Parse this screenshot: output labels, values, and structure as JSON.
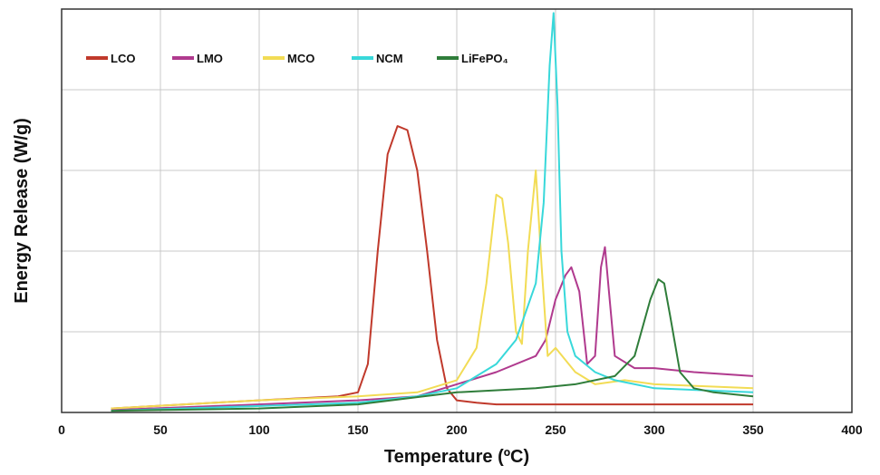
{
  "chart_data": {
    "type": "line",
    "title": "",
    "xlabel": "Temperature (ºC)",
    "ylabel": "Energy Release (W/g)",
    "xlim": [
      0,
      400
    ],
    "ylim": [
      0,
      5
    ],
    "xticks": [
      0,
      50,
      100,
      150,
      200,
      250,
      300,
      350,
      400
    ],
    "yticks": [
      0,
      1,
      2,
      3,
      4,
      5
    ],
    "grid": true,
    "legend_position": "top-left",
    "series": [
      {
        "name": "LCO",
        "color": "#c0392b",
        "x": [
          25,
          100,
          140,
          150,
          155,
          160,
          165,
          170,
          175,
          180,
          185,
          190,
          195,
          200,
          210,
          220,
          240,
          260,
          300,
          350
        ],
        "y": [
          0.05,
          0.15,
          0.2,
          0.25,
          0.6,
          2.0,
          3.2,
          3.55,
          3.5,
          3.0,
          2.0,
          0.9,
          0.3,
          0.15,
          0.12,
          0.1,
          0.1,
          0.1,
          0.1,
          0.1
        ]
      },
      {
        "name": "LMO",
        "color": "#b03a8e",
        "x": [
          25,
          100,
          150,
          180,
          200,
          220,
          240,
          245,
          250,
          255,
          258,
          262,
          266,
          270,
          273,
          275,
          277,
          280,
          290,
          300,
          320,
          350
        ],
        "y": [
          0.03,
          0.1,
          0.15,
          0.2,
          0.35,
          0.5,
          0.7,
          0.9,
          1.4,
          1.7,
          1.8,
          1.5,
          0.6,
          0.7,
          1.8,
          2.05,
          1.5,
          0.7,
          0.55,
          0.55,
          0.5,
          0.45
        ]
      },
      {
        "name": "MCO",
        "color": "#f2dc55",
        "x": [
          25,
          100,
          150,
          180,
          200,
          210,
          215,
          220,
          223,
          226,
          230,
          233,
          236,
          240,
          243,
          246,
          250,
          255,
          260,
          270,
          285,
          300,
          350
        ],
        "y": [
          0.05,
          0.15,
          0.2,
          0.25,
          0.4,
          0.8,
          1.6,
          2.7,
          2.65,
          2.1,
          1.0,
          0.85,
          2.0,
          3.0,
          1.8,
          0.7,
          0.8,
          0.65,
          0.5,
          0.35,
          0.4,
          0.35,
          0.3
        ]
      },
      {
        "name": "NCM",
        "color": "#38d8da",
        "x": [
          25,
          100,
          150,
          180,
          200,
          220,
          230,
          240,
          244,
          247,
          249,
          251,
          253,
          256,
          260,
          270,
          280,
          300,
          350
        ],
        "y": [
          0.02,
          0.08,
          0.12,
          0.2,
          0.3,
          0.6,
          0.9,
          1.6,
          2.6,
          4.3,
          4.95,
          3.8,
          2.0,
          1.0,
          0.7,
          0.5,
          0.4,
          0.3,
          0.25
        ]
      },
      {
        "name": "LiFePO₄",
        "color": "#2f7d3a",
        "x": [
          25,
          100,
          150,
          200,
          240,
          260,
          280,
          290,
          298,
          302,
          305,
          308,
          313,
          320,
          330,
          350
        ],
        "y": [
          0.02,
          0.05,
          0.1,
          0.25,
          0.3,
          0.35,
          0.45,
          0.7,
          1.4,
          1.65,
          1.6,
          1.2,
          0.5,
          0.3,
          0.25,
          0.2
        ]
      }
    ]
  }
}
